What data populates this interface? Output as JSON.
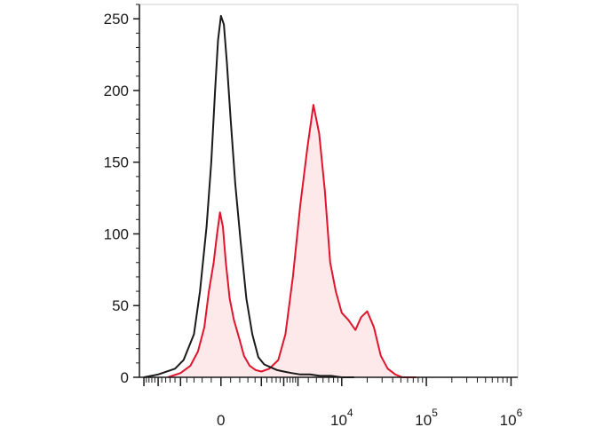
{
  "chart_data": {
    "type": "area",
    "title": "",
    "xlabel": "",
    "ylabel": "",
    "x_scale": "biexponential",
    "ylim": [
      0,
      260
    ],
    "y_ticks": [
      0,
      50,
      100,
      150,
      200,
      250
    ],
    "y_tick_labels": [
      "0",
      "50",
      "100",
      "150",
      "200",
      "250"
    ],
    "x_tick_labels": [
      {
        "base": "0",
        "exp": ""
      },
      {
        "base": "10",
        "exp": "4"
      },
      {
        "base": "10",
        "exp": "5"
      },
      {
        "base": "10",
        "exp": "6"
      }
    ],
    "x_tick_values": [
      0,
      10000,
      100000,
      1000000
    ],
    "grid": false,
    "legend": "none",
    "series": [
      {
        "color": "#1a1a1a",
        "fill": "none",
        "x": [
          -3000,
          -2000,
          -1200,
          -900,
          -600,
          -450,
          -300,
          -200,
          -120,
          -60,
          0,
          60,
          120,
          200,
          300,
          420,
          560,
          720,
          900,
          1100,
          1350,
          1650,
          2000,
          2500,
          3200,
          4200,
          5500,
          7500,
          10000,
          14000
        ],
        "y": [
          0,
          2,
          6,
          12,
          30,
          60,
          105,
          150,
          200,
          235,
          252,
          246,
          220,
          180,
          135,
          95,
          55,
          30,
          14,
          9,
          7,
          5,
          4,
          3,
          2,
          2,
          1,
          1,
          0,
          0
        ]
      },
      {
        "color": "#e0142d",
        "fill": "#fde8ea",
        "x": [
          -1500,
          -1000,
          -700,
          -500,
          -350,
          -250,
          -150,
          -80,
          -20,
          40,
          100,
          180,
          270,
          380,
          500,
          650,
          820,
          1000,
          1300,
          1700,
          2100,
          2600,
          3200,
          3900,
          4600,
          5400,
          6300,
          7300,
          8500,
          10000,
          12000,
          14500,
          17000,
          20000,
          24000,
          29000,
          35000,
          43000,
          52000,
          63000,
          76000
        ],
        "y": [
          0,
          3,
          8,
          18,
          35,
          60,
          80,
          100,
          115,
          105,
          80,
          55,
          40,
          28,
          15,
          8,
          5,
          4,
          6,
          12,
          30,
          70,
          120,
          160,
          190,
          170,
          130,
          80,
          60,
          45,
          40,
          33,
          42,
          46,
          35,
          15,
          6,
          2,
          0,
          0,
          0
        ]
      }
    ]
  }
}
